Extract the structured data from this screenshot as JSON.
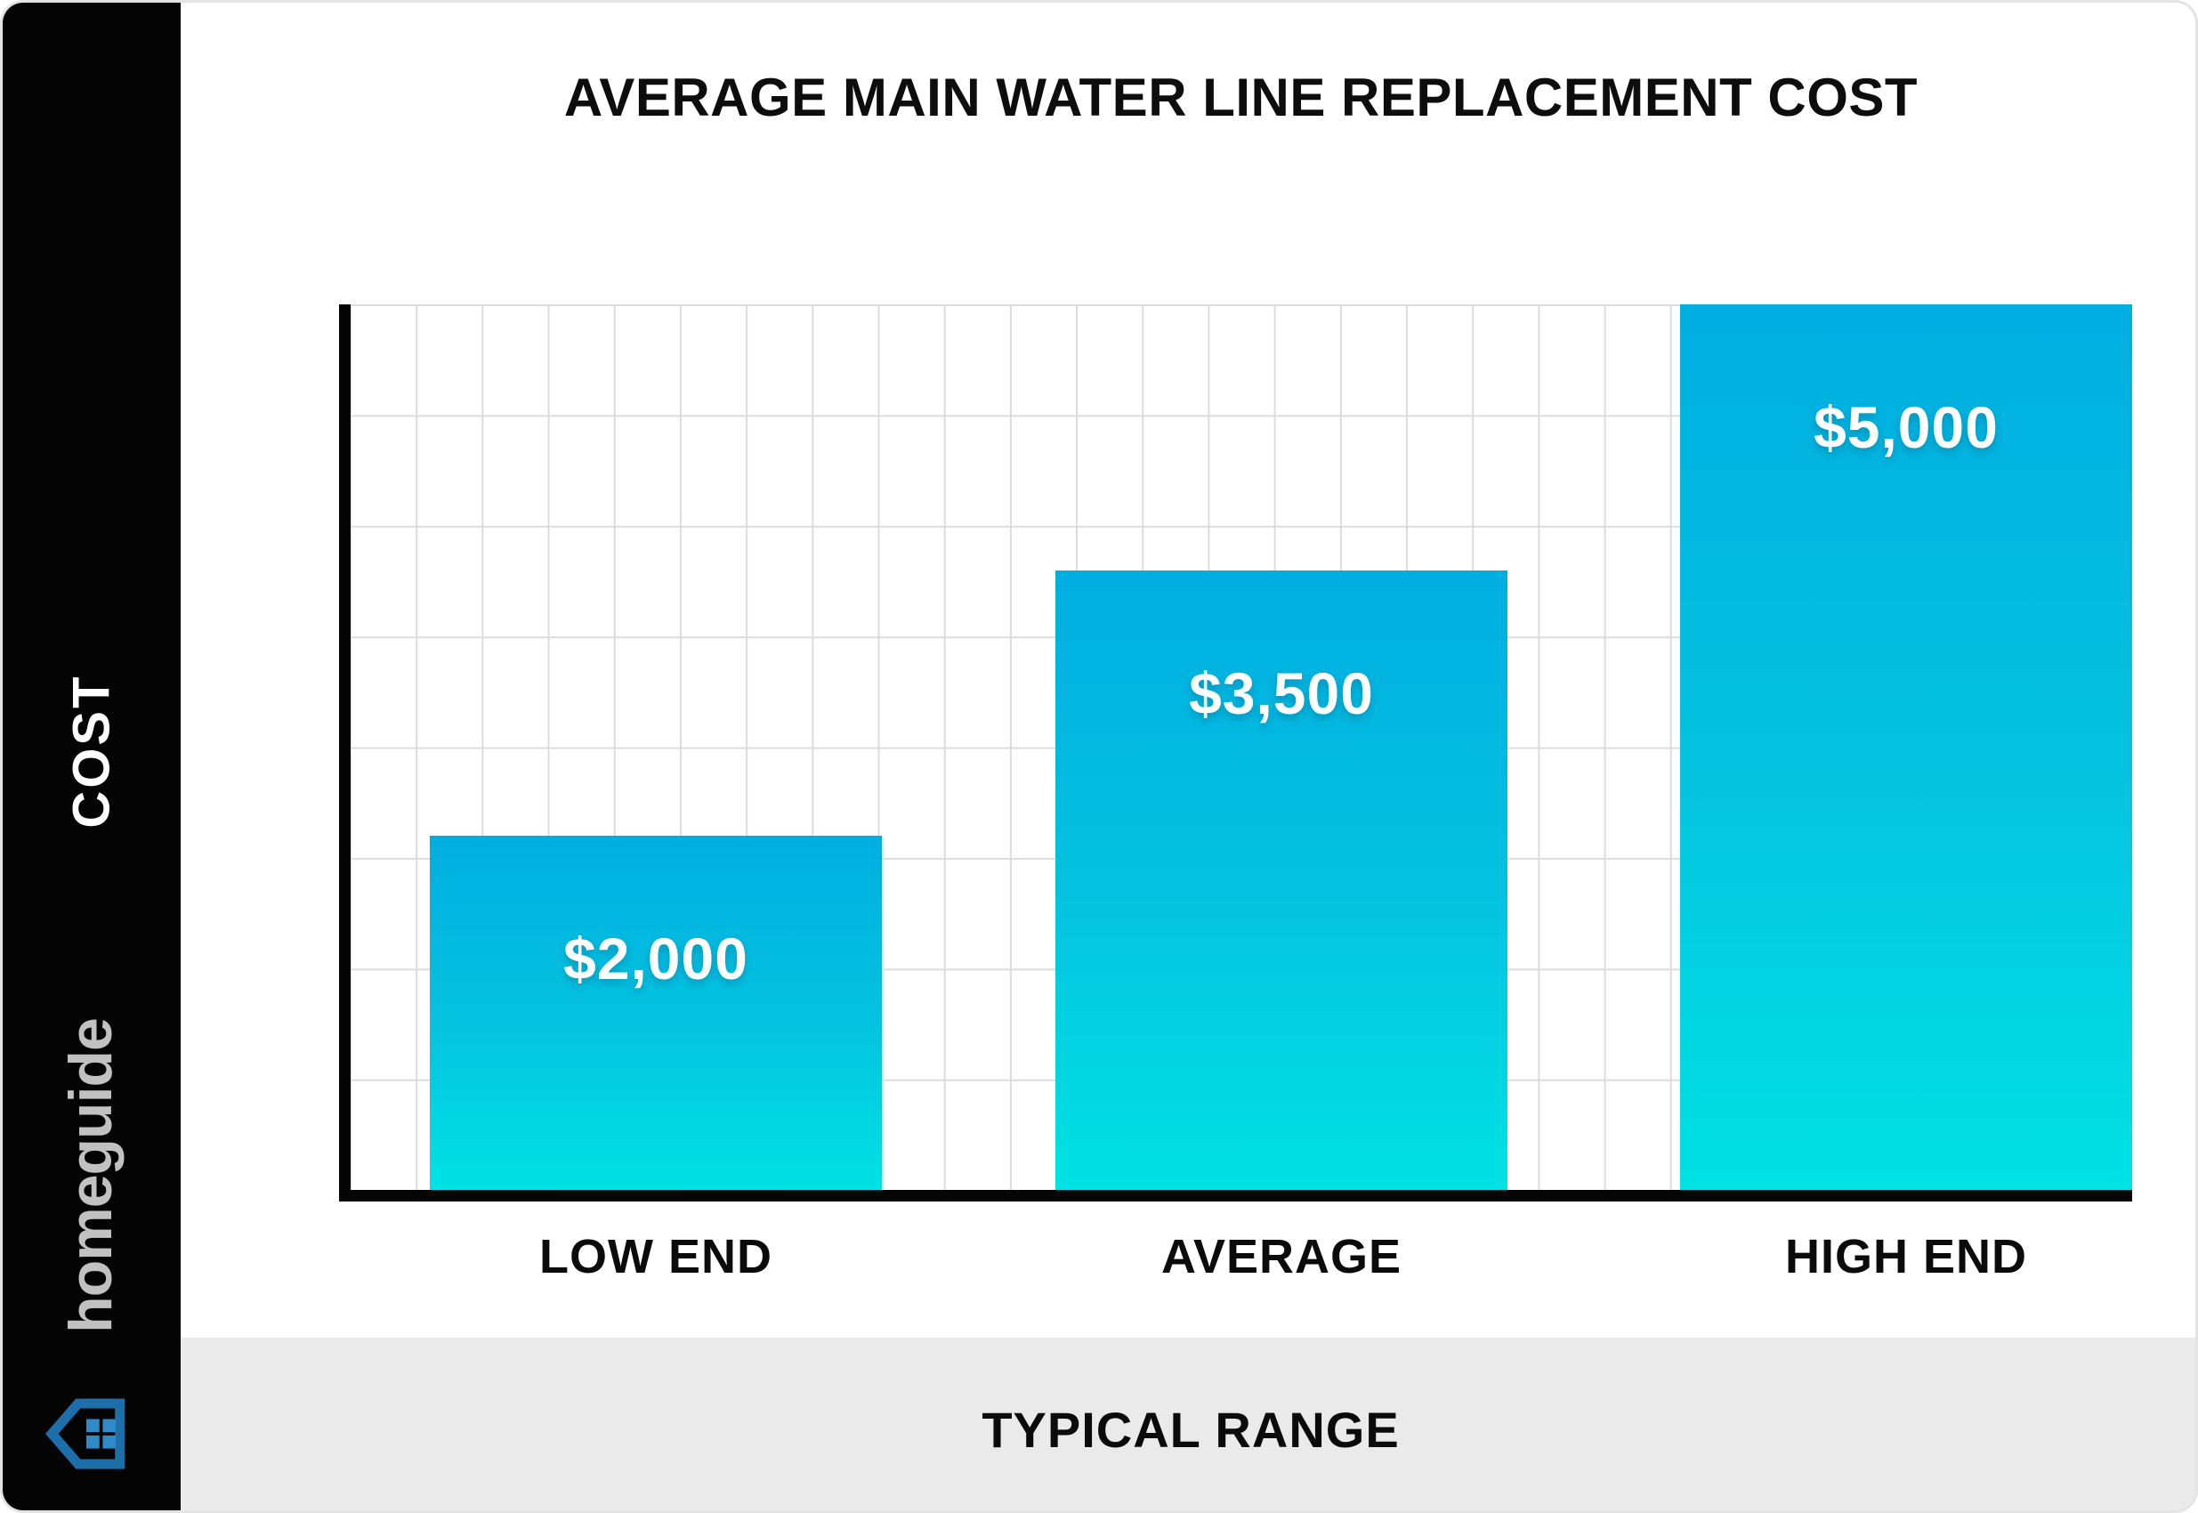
{
  "title": "AVERAGE MAIN WATER LINE REPLACEMENT COST",
  "sidebar": {
    "axis_label": "COST",
    "brand": "homeguide",
    "brand_text_color": "#c1c1c1",
    "logo_outline_color": "#1d6fa9",
    "logo_window_color": "#2e8bc7",
    "background": "#040404"
  },
  "footer": {
    "label": "TYPICAL RANGE",
    "background": "#eaeaea"
  },
  "chart_data": {
    "type": "bar",
    "title": "AVERAGE MAIN WATER LINE REPLACEMENT COST",
    "categories": [
      "LOW END",
      "AVERAGE",
      "HIGH END"
    ],
    "values": [
      2000,
      3500,
      5000
    ],
    "value_labels": [
      "$2,000",
      "$3,500",
      "$5,000"
    ],
    "series": [
      {
        "name": "Cost",
        "values": [
          2000,
          3500,
          5000
        ]
      }
    ],
    "xlabel": "TYPICAL RANGE",
    "ylabel": "COST",
    "ylim": [
      0,
      5000
    ],
    "grid": true,
    "legend": "none",
    "bar_gradient_top": "#00aee1",
    "bar_gradient_bottom": "#00e2e4",
    "value_label_color": "#ffffff",
    "axis_color": "#050505",
    "gridline_color": "#dcdcdc"
  }
}
